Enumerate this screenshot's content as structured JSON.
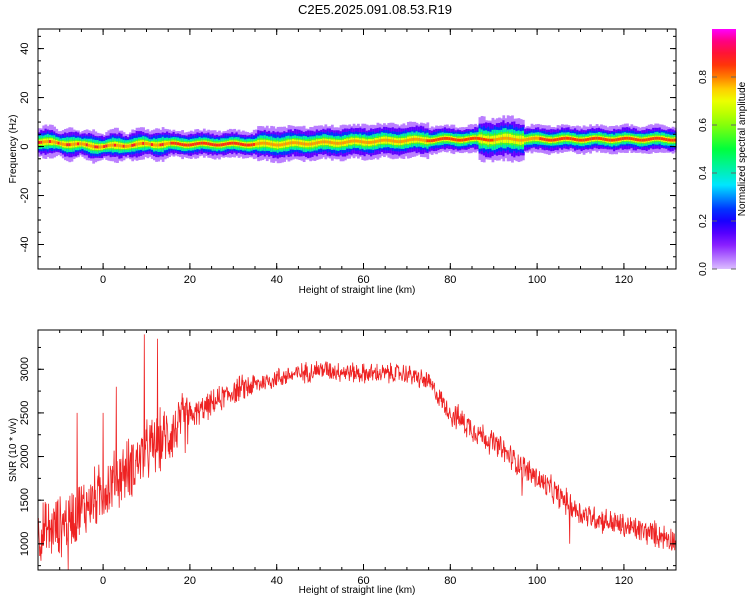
{
  "title": "C2E5.2025.091.08.53.R19",
  "colors": {
    "snr_line": "#ee2222",
    "frame": "#000000",
    "background": "#ffffff"
  },
  "chart_data": [
    {
      "type": "heatmap",
      "name_on_chart": "",
      "xlabel": "Height of straight line (km)",
      "ylabel": "Frequency (Hz)",
      "xlim": [
        -15,
        132
      ],
      "ylim": [
        -50,
        48
      ],
      "x_ticks": [
        0,
        20,
        40,
        60,
        80,
        100,
        120
      ],
      "y_ticks": [
        -40,
        -20,
        0,
        20,
        40
      ],
      "colorbar": {
        "label": "Normalized spectral amplitude",
        "range": [
          0,
          1
        ],
        "ticks": [
          0.0,
          0.2,
          0.4,
          0.6,
          0.8
        ],
        "colormap": "rainbow (violet → blue → cyan → green → yellow → red → magenta)"
      },
      "ridge": {
        "description": "narrow band near 0–3 Hz across the full height range",
        "center_freq_x": [
          -15,
          0,
          10,
          20,
          40,
          60,
          80,
          95,
          100,
          132
        ],
        "center_freq_y": [
          2,
          0,
          1,
          1,
          1,
          2,
          3,
          3,
          3,
          3
        ]
      }
    },
    {
      "type": "line",
      "xlabel": "Height of straight line (km)",
      "ylabel": "SNR (10 * v/v)",
      "xlim": [
        -15,
        132
      ],
      "ylim": [
        700,
        3450
      ],
      "x_ticks": [
        0,
        20,
        40,
        60,
        80,
        100,
        120
      ],
      "y_ticks": [
        1000,
        1500,
        2000,
        2500,
        3000
      ],
      "trend": {
        "x": [
          -15,
          -10,
          0,
          10,
          20,
          30,
          40,
          50,
          60,
          70,
          75,
          80,
          90,
          100,
          110,
          120,
          132
        ],
        "y": [
          1100,
          1200,
          1600,
          2050,
          2450,
          2750,
          2900,
          3000,
          2950,
          2950,
          2850,
          2500,
          2150,
          1750,
          1350,
          1200,
          1050
        ]
      },
      "spikes": [
        {
          "x": 9.5,
          "y": 3400
        },
        {
          "x": 12.5,
          "y": 3350
        },
        {
          "x": 3.0,
          "y": 2800
        },
        {
          "x": -6.0,
          "y": 2500
        },
        {
          "x": 0.0,
          "y": 2500
        },
        {
          "x": -8.0,
          "y": 700
        },
        {
          "x": 96.5,
          "y": 1550
        },
        {
          "x": 107.5,
          "y": 1000
        }
      ]
    }
  ]
}
